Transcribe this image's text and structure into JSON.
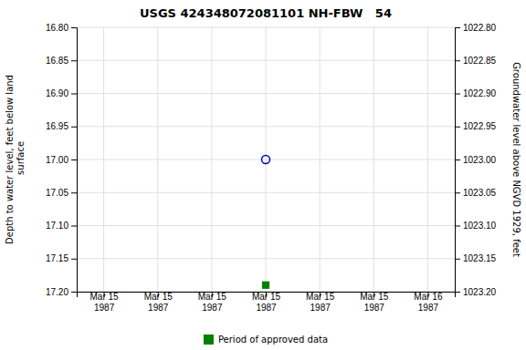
{
  "chart_data": {
    "type": "scatter",
    "title": "USGS 424348072081101 NH-FBW   54",
    "ylabel": "Depth to water level, feet below land\n surface",
    "y2label": "Groundwater level above NGVD 1929, feet",
    "categories": [
      "Mar 15\n1987",
      "Mar 15\n1987",
      "Mar 15\n1987",
      "Mar 15\n1987",
      "Mar 15\n1987",
      "Mar 15\n1987",
      "Mar 16\n1987"
    ],
    "series": [
      {
        "color": "#0000cc",
        "marker": "open-circle",
        "values": [
          null,
          null,
          null,
          17.0,
          null,
          null,
          null
        ]
      },
      {
        "name": "Period of approved data",
        "color": "#008000",
        "marker": "square",
        "values": [
          null,
          null,
          null,
          17.19,
          null,
          null,
          null
        ]
      }
    ],
    "ylim": [
      17.2,
      16.8
    ],
    "yticks": [
      {
        "value": 16.8,
        "label": "16.80"
      },
      {
        "value": 16.85,
        "label": "16.85"
      },
      {
        "value": 16.9,
        "label": "16.90"
      },
      {
        "value": 16.95,
        "label": "16.95"
      },
      {
        "value": 17.0,
        "label": "17.00"
      },
      {
        "value": 17.05,
        "label": "17.05"
      },
      {
        "value": 17.1,
        "label": "17.10"
      },
      {
        "value": 17.15,
        "label": "17.15"
      },
      {
        "value": 17.2,
        "label": "17.20"
      }
    ],
    "y2lim": [
      1023.2,
      1022.8
    ],
    "y2ticks": [
      {
        "value": 1023.2,
        "label": "1023.20"
      },
      {
        "value": 1023.15,
        "label": "1023.15"
      },
      {
        "value": 1023.1,
        "label": "1023.10"
      },
      {
        "value": 1023.05,
        "label": "1023.05"
      },
      {
        "value": 1023.0,
        "label": "1023.00"
      },
      {
        "value": 1022.95,
        "label": "1022.95"
      },
      {
        "value": 1022.9,
        "label": "1022.90"
      },
      {
        "value": 1022.85,
        "label": "1022.85"
      },
      {
        "value": 1022.8,
        "label": "1022.80"
      }
    ],
    "grid": true,
    "legend": "bottom"
  }
}
